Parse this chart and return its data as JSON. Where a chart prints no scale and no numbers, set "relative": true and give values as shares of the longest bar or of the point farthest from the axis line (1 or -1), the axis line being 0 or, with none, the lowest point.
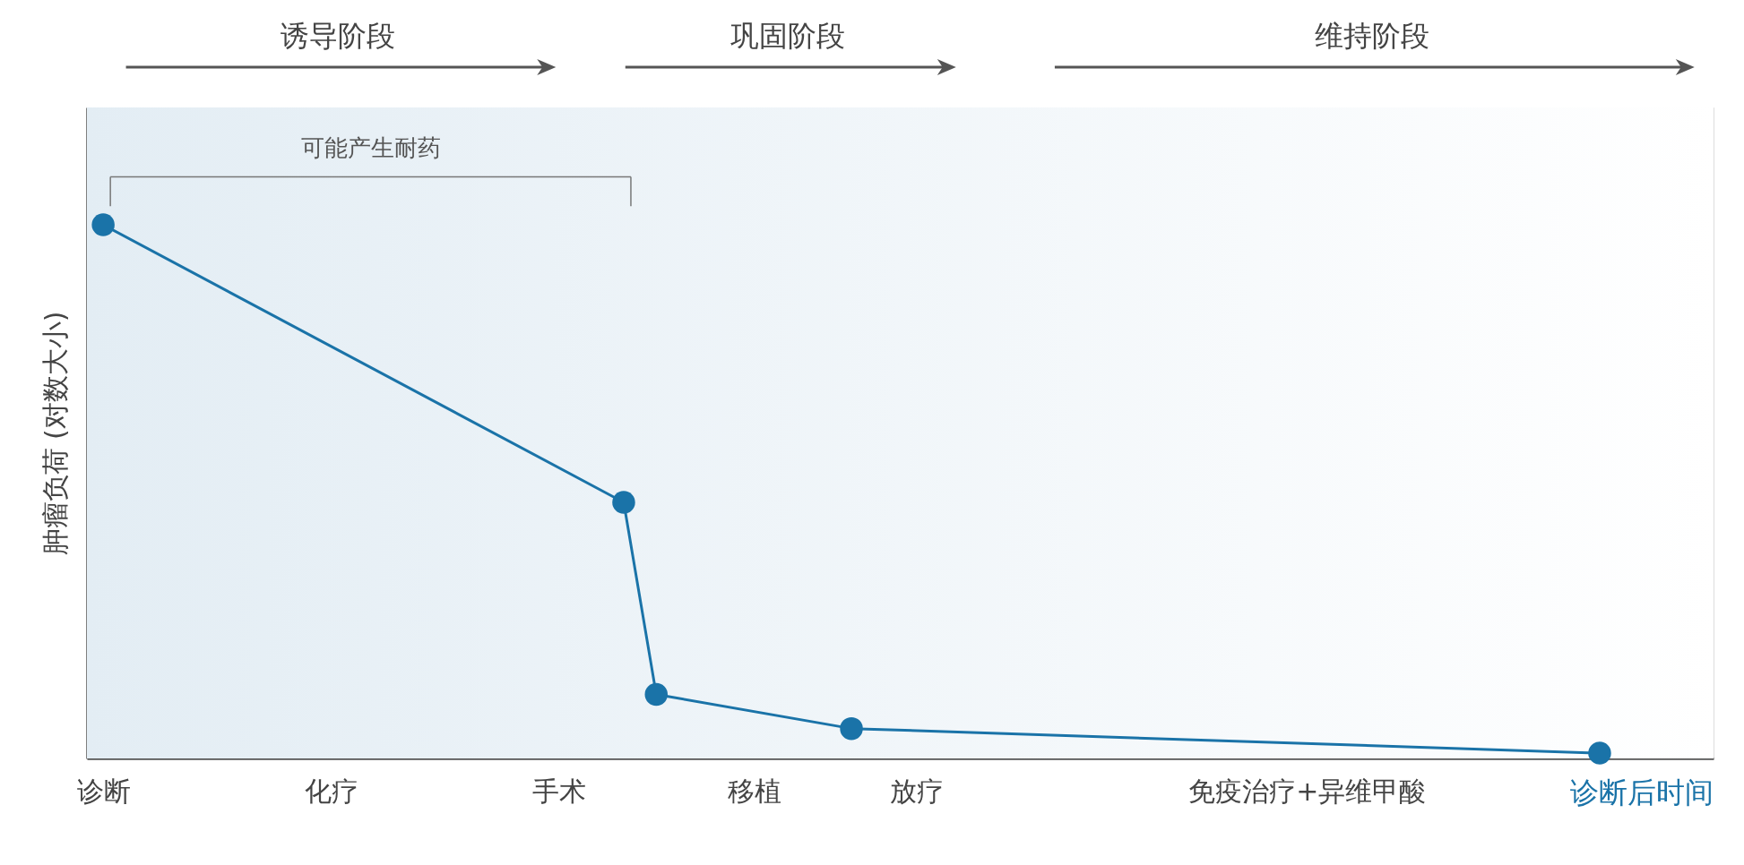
{
  "chart_data": {
    "type": "line",
    "relative": true,
    "ylabel": "肿瘤负荷 (对数大小)",
    "xlabel": "诊断后时间",
    "categories": [
      "诊断",
      null,
      null,
      null,
      null,
      null,
      null,
      "化疗",
      null,
      null,
      null,
      null,
      null,
      null,
      "手术",
      null,
      null,
      null,
      null,
      null,
      "移植",
      null,
      null,
      null,
      null,
      "放疗",
      null,
      null,
      null,
      null,
      null,
      null,
      null,
      null,
      null,
      null,
      null,
      "免疫治疗+异维甲酸",
      null,
      null,
      null,
      null,
      null,
      null,
      null,
      null,
      null,
      null,
      null,
      null
    ],
    "series": [
      {
        "color": "#1a73a8",
        "values": [
          1,
          null,
          null,
          null,
          null,
          null,
          null,
          null,
          null,
          null,
          null,
          null,
          null,
          null,
          null,
          null,
          0.48,
          0.12,
          null,
          null,
          null,
          null,
          null,
          0.056,
          null,
          null,
          null,
          null,
          null,
          null,
          null,
          null,
          null,
          null,
          null,
          null,
          null,
          null,
          null,
          null,
          null,
          null,
          null,
          null,
          null,
          null,
          0.01,
          null,
          null,
          null
        ]
      }
    ],
    "marker": "circle",
    "line_style": "solid",
    "annotations": [
      "诱导阶段",
      "巩固阶段",
      "维持阶段",
      "可能产生耐药"
    ]
  }
}
